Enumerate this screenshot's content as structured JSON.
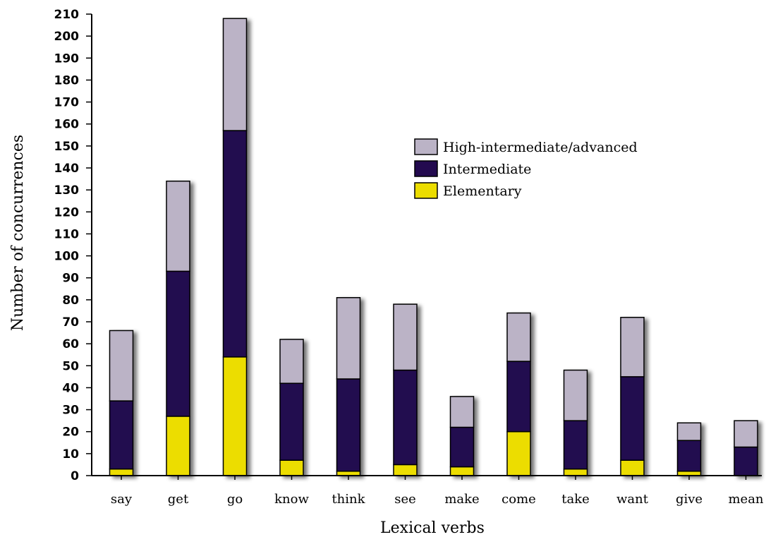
{
  "chart_data": {
    "type": "bar",
    "stacked": true,
    "xlabel": "Lexical verbs",
    "ylabel": "Number of concurrences",
    "ylim": [
      0,
      210
    ],
    "ytick_step": 10,
    "categories": [
      "say",
      "get",
      "go",
      "know",
      "think",
      "see",
      "make",
      "come",
      "take",
      "want",
      "give",
      "mean"
    ],
    "series": [
      {
        "name": "Elementary",
        "color": "#ecdd00",
        "values": [
          3,
          27,
          54,
          7,
          2,
          5,
          4,
          20,
          3,
          7,
          2,
          0
        ]
      },
      {
        "name": "Intermediate",
        "color": "#230a4f",
        "values": [
          31,
          66,
          103,
          35,
          42,
          43,
          18,
          32,
          22,
          38,
          14,
          13
        ]
      },
      {
        "name": "High-intermediate/advanced",
        "color": "#bbb3c6",
        "values": [
          32,
          41,
          51,
          20,
          37,
          30,
          14,
          22,
          23,
          27,
          8,
          12
        ]
      }
    ],
    "legend": {
      "position": "upper-center",
      "order": [
        "High-intermediate/advanced",
        "Intermediate",
        "Elementary"
      ]
    },
    "grid": false
  }
}
